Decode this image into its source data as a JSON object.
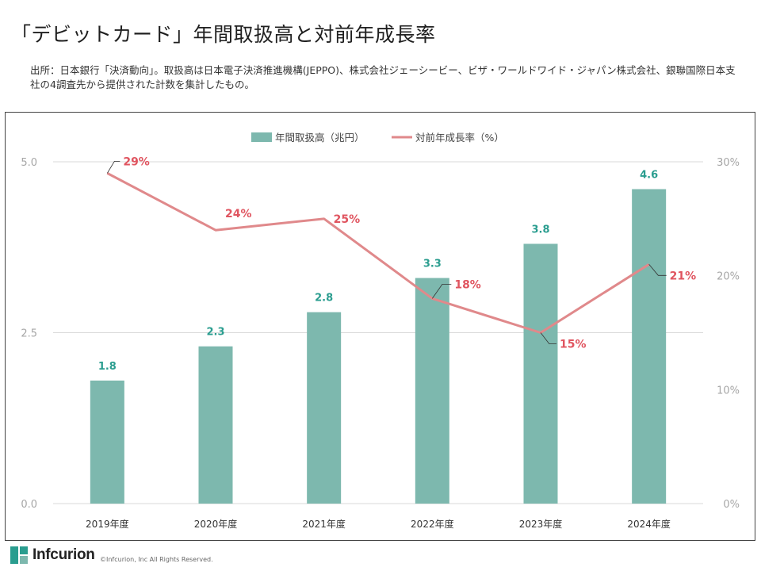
{
  "page": {
    "title": "「デビットカード」年間取扱高と対前年成長率",
    "source": "出所：日本銀行「決済動向」。取扱高は日本電子決済推進機構(JEPPO)、株式会社ジェーシービー、ビザ・ワールドワイド・ジャパン株式会社、銀聯国際日本支社の4調査先から提供された計数を集計したもの。"
  },
  "footer": {
    "logo_text": "Infcurion",
    "copyright": "©Infcurion, Inc    All Rights Reserved."
  },
  "colors": {
    "bar": "#7db8ae",
    "bar_label": "#2a9d8f",
    "line": "#e0898b",
    "line_label": "#e05560",
    "grid": "#d9d9d9",
    "axis_text": "#a6a6a6"
  },
  "chart_data": {
    "type": "bar",
    "categories": [
      "2019年度",
      "2020年度",
      "2021年度",
      "2022年度",
      "2023年度",
      "2024年度"
    ],
    "series": [
      {
        "name": "年間取扱高（兆円）",
        "type": "bar",
        "axis": "left",
        "values": [
          1.8,
          2.3,
          2.8,
          3.3,
          3.8,
          4.6
        ],
        "labels": [
          "1.8",
          "2.3",
          "2.8",
          "3.3",
          "3.8",
          "4.6"
        ]
      },
      {
        "name": "対前年成長率（%）",
        "type": "line",
        "axis": "right",
        "values": [
          29,
          24,
          25,
          18,
          15,
          21
        ],
        "labels": [
          "29%",
          "24%",
          "25%",
          "18%",
          "15%",
          "21%"
        ]
      }
    ],
    "y_left": {
      "range": [
        0,
        5.0
      ],
      "ticks": [
        "0.0",
        "2.5",
        "5.0"
      ],
      "tick_values": [
        0,
        2.5,
        5.0
      ]
    },
    "y_right": {
      "range": [
        0,
        30
      ],
      "ticks": [
        "0%",
        "10%",
        "20%",
        "30%"
      ],
      "tick_values": [
        0,
        10,
        20,
        30
      ]
    },
    "grid": true,
    "legend_position": "top-center"
  }
}
